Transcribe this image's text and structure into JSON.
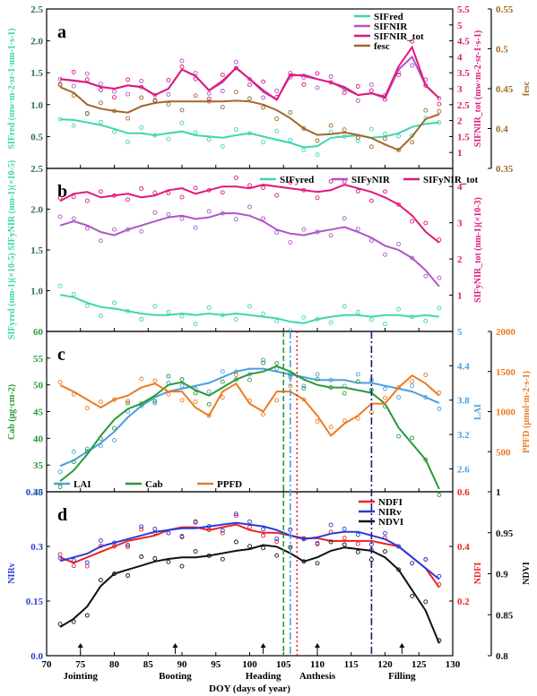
{
  "chart_data": [
    {
      "panel": "a",
      "type": "line",
      "xlim": [
        70,
        130
      ],
      "x": [
        72,
        74,
        76,
        78,
        80,
        82,
        84,
        86,
        88,
        90,
        92,
        94,
        96,
        98,
        100,
        102,
        104,
        106,
        108,
        110,
        112,
        114,
        116,
        118,
        120,
        122,
        124,
        126,
        128
      ],
      "axes": {
        "left": {
          "label": "SIFred (mw·m-2·sr-1·nm-1·s-1)",
          "ylim": [
            0,
            2.5
          ],
          "ticks": [
            0.5,
            1.0,
            1.5,
            2.0,
            2.5
          ]
        },
        "right_inner": {
          "label": "SIFNIR_tot (mw·m-2·sr-1·s-1)",
          "ylim": [
            0.5,
            5.5
          ],
          "ticks": [
            1.0,
            1.5,
            2.0,
            2.5,
            3.0,
            3.5,
            4.0,
            4.5,
            5.0,
            5.5
          ]
        },
        "right_outer": {
          "label": "fesc",
          "ylim": [
            0.35,
            0.55
          ],
          "ticks": [
            0.35,
            0.4,
            0.45,
            0.5,
            0.55
          ]
        }
      },
      "series": [
        {
          "name": "SIFred",
          "axis": "left",
          "color": "#3dd6b0",
          "values": [
            0.77,
            0.76,
            0.72,
            0.68,
            0.62,
            0.55,
            0.55,
            0.52,
            0.55,
            0.58,
            0.52,
            0.5,
            0.48,
            0.52,
            0.55,
            0.5,
            0.45,
            0.4,
            0.33,
            0.35,
            0.48,
            0.5,
            0.52,
            0.48,
            0.5,
            0.55,
            0.65,
            0.7,
            0.72
          ]
        },
        {
          "name": "SIFNIR",
          "axis": "left",
          "color": "#b055c8",
          "values": [
            1.4,
            1.38,
            1.35,
            1.28,
            1.25,
            1.3,
            1.28,
            1.15,
            1.25,
            1.55,
            1.45,
            1.22,
            1.35,
            1.58,
            1.4,
            1.2,
            1.08,
            1.45,
            1.47,
            1.4,
            1.35,
            1.25,
            1.15,
            1.18,
            1.1,
            1.55,
            1.75,
            1.3,
            1.1
          ]
        },
        {
          "name": "SIFNIR_tot",
          "axis": "right_inner",
          "color": "#e0187a",
          "values": [
            3.3,
            3.25,
            3.2,
            3.05,
            3.0,
            3.1,
            3.05,
            2.8,
            3.0,
            3.6,
            3.4,
            2.95,
            3.25,
            3.65,
            3.3,
            2.95,
            2.65,
            3.45,
            3.4,
            3.3,
            3.2,
            3.05,
            2.8,
            2.85,
            2.75,
            3.7,
            4.3,
            3.1,
            2.7
          ]
        },
        {
          "name": "fesc",
          "axis": "right_outer",
          "color": "#a0672a",
          "values": [
            0.452,
            0.445,
            0.43,
            0.425,
            0.422,
            0.42,
            0.428,
            0.432,
            0.434,
            0.434,
            0.434,
            0.434,
            0.434,
            0.435,
            0.434,
            0.43,
            0.423,
            0.413,
            0.4,
            0.392,
            0.393,
            0.395,
            0.392,
            0.388,
            0.38,
            0.373,
            0.39,
            0.412,
            0.418
          ]
        }
      ],
      "legend": [
        "SIFred",
        "SIFNIR",
        "SIFNIR_tot",
        "fesc"
      ]
    },
    {
      "panel": "b",
      "type": "line",
      "xlim": [
        70,
        130
      ],
      "x": [
        72,
        74,
        76,
        78,
        80,
        82,
        84,
        86,
        88,
        90,
        92,
        94,
        96,
        98,
        100,
        102,
        104,
        106,
        108,
        110,
        112,
        114,
        116,
        118,
        120,
        122,
        124,
        126,
        128
      ],
      "axes": {
        "left": {
          "label": "SIFyred (nm-1)(×10-5) SIFyNIR (nm-1)(×10-5)",
          "ylim": [
            0.5,
            2.5
          ],
          "ticks": [
            1.0,
            1.5,
            2.0,
            2.5
          ]
        },
        "right": {
          "label": "SIFyNIR_tot (nm-1)(×10-3)",
          "ylim": [
            0,
            4.5
          ],
          "ticks": [
            1,
            2,
            3,
            4
          ]
        }
      },
      "series": [
        {
          "name": "SIFyred",
          "axis": "left",
          "color": "#3dd6b0",
          "values": [
            0.95,
            0.92,
            0.85,
            0.8,
            0.78,
            0.75,
            0.72,
            0.7,
            0.7,
            0.72,
            0.7,
            0.72,
            0.7,
            0.72,
            0.7,
            0.68,
            0.66,
            0.62,
            0.6,
            0.65,
            0.68,
            0.7,
            0.7,
            0.68,
            0.7,
            0.7,
            0.68,
            0.7,
            0.68
          ]
        },
        {
          "name": "SIFyNIR",
          "axis": "left",
          "color": "#b055c8",
          "values": [
            1.8,
            1.85,
            1.8,
            1.72,
            1.68,
            1.75,
            1.8,
            1.85,
            1.9,
            1.92,
            1.88,
            1.9,
            1.95,
            1.95,
            1.92,
            1.85,
            1.75,
            1.7,
            1.68,
            1.72,
            1.75,
            1.78,
            1.72,
            1.65,
            1.55,
            1.5,
            1.4,
            1.25,
            1.05
          ]
        },
        {
          "name": "SIFyNIR_tot",
          "axis": "right",
          "color": "#e0187a",
          "values": [
            3.6,
            3.8,
            3.85,
            3.7,
            3.75,
            3.8,
            3.7,
            3.75,
            3.9,
            3.95,
            3.8,
            3.9,
            4.0,
            4.0,
            3.95,
            4.05,
            4.0,
            3.95,
            3.9,
            3.85,
            3.9,
            4.05,
            3.95,
            3.85,
            3.7,
            3.5,
            3.2,
            2.75,
            2.45
          ]
        }
      ],
      "legend": [
        "SIFyred",
        "SIFyNIR",
        "SIFyNIR_tot"
      ]
    },
    {
      "panel": "c",
      "type": "line",
      "xlim": [
        70,
        130
      ],
      "x": [
        72,
        74,
        76,
        78,
        80,
        82,
        84,
        86,
        88,
        90,
        92,
        94,
        96,
        98,
        100,
        102,
        104,
        106,
        108,
        110,
        112,
        114,
        116,
        118,
        120,
        122,
        124,
        126,
        128
      ],
      "axes": {
        "left": {
          "label": "Cab (μg·cm-2)",
          "ylim": [
            30,
            60
          ],
          "ticks": [
            30,
            35,
            40,
            45,
            50,
            55,
            60
          ]
        },
        "right_inner": {
          "label": "LAI",
          "ylim": [
            2.2,
            5.0
          ],
          "ticks": [
            2.6,
            3.2,
            3.8,
            4.4,
            5.0
          ]
        },
        "right_outer": {
          "label": "PPFD (μmol·m-2·s-1)",
          "ylim": [
            0,
            2000
          ],
          "ticks": [
            500,
            1000,
            1500,
            2000
          ]
        }
      },
      "series": [
        {
          "name": "LAI",
          "axis": "right_inner",
          "color": "#4a9fe0",
          "values": [
            2.65,
            2.75,
            2.9,
            3.05,
            3.25,
            3.5,
            3.7,
            3.85,
            3.95,
            4.0,
            4.05,
            4.1,
            4.2,
            4.3,
            4.35,
            4.35,
            4.3,
            4.25,
            4.2,
            4.15,
            4.15,
            4.15,
            4.1,
            4.1,
            4.05,
            4.0,
            3.95,
            3.85,
            3.75
          ]
        },
        {
          "name": "Cab",
          "axis": "left",
          "color": "#2a9a36",
          "values": [
            32.0,
            34.0,
            37.0,
            40.5,
            43.5,
            45.5,
            46.5,
            48.0,
            50.0,
            50.5,
            49.0,
            48.0,
            49.5,
            51.0,
            52.0,
            52.5,
            53.5,
            52.5,
            51.0,
            50.0,
            49.5,
            49.5,
            49.0,
            48.5,
            46.5,
            42.0,
            39.0,
            36.0,
            30.5
          ]
        },
        {
          "name": "PPFD",
          "axis": "right_outer",
          "color": "#ec7a22",
          "values": [
            1330,
            1250,
            1150,
            1050,
            1150,
            1200,
            1300,
            1350,
            1250,
            1250,
            1050,
            950,
            1250,
            1350,
            1100,
            1000,
            1250,
            1250,
            1150,
            950,
            700,
            850,
            950,
            1100,
            1100,
            1300,
            1450,
            1350,
            1200
          ]
        }
      ],
      "legend": [
        "LAI",
        "Cab",
        "PPFD"
      ]
    },
    {
      "panel": "d",
      "type": "line",
      "xlim": [
        70,
        130
      ],
      "xlabel": "DOY (days of year)",
      "xticks": [
        70,
        75,
        80,
        85,
        90,
        95,
        100,
        105,
        110,
        115,
        120,
        125,
        130
      ],
      "x": [
        72,
        74,
        76,
        78,
        80,
        82,
        84,
        86,
        88,
        90,
        92,
        94,
        96,
        98,
        100,
        102,
        104,
        106,
        108,
        110,
        112,
        114,
        116,
        118,
        120,
        122,
        124,
        126,
        128
      ],
      "axes": {
        "left": {
          "label": "NIRv",
          "ylim": [
            0,
            0.45
          ],
          "ticks": [
            0.0,
            0.15,
            0.3,
            0.45
          ]
        },
        "right_inner": {
          "label": "NDFI",
          "ylim": [
            0,
            0.6
          ],
          "ticks": [
            0.2,
            0.4,
            0.6
          ]
        },
        "right_outer": {
          "label": "NDVI",
          "ylim": [
            0.8,
            1.0
          ],
          "ticks": [
            0.8,
            0.85,
            0.9,
            0.95,
            1.0
          ]
        }
      },
      "series": [
        {
          "name": "NDFI",
          "axis": "right_inner",
          "color": "#ee2222",
          "values": [
            0.36,
            0.34,
            0.36,
            0.38,
            0.4,
            0.42,
            0.43,
            0.44,
            0.46,
            0.47,
            0.47,
            0.46,
            0.47,
            0.48,
            0.46,
            0.45,
            0.45,
            0.44,
            0.43,
            0.43,
            0.42,
            0.42,
            0.42,
            0.42,
            0.41,
            0.4,
            0.36,
            0.32,
            0.25
          ]
        },
        {
          "name": "NIRv",
          "axis": "left",
          "color": "#2a3ad8",
          "values": [
            0.26,
            0.27,
            0.28,
            0.3,
            0.31,
            0.32,
            0.33,
            0.34,
            0.345,
            0.35,
            0.35,
            0.355,
            0.36,
            0.365,
            0.36,
            0.355,
            0.345,
            0.33,
            0.32,
            0.325,
            0.335,
            0.34,
            0.34,
            0.33,
            0.32,
            0.3,
            0.27,
            0.24,
            0.21
          ]
        },
        {
          "name": "NDVI",
          "axis": "right_outer",
          "color": "#111111",
          "values": [
            0.835,
            0.845,
            0.86,
            0.885,
            0.9,
            0.905,
            0.91,
            0.915,
            0.918,
            0.92,
            0.92,
            0.922,
            0.925,
            0.928,
            0.93,
            0.935,
            0.933,
            0.925,
            0.915,
            0.92,
            0.928,
            0.932,
            0.93,
            0.928,
            0.92,
            0.905,
            0.88,
            0.855,
            0.815
          ]
        }
      ],
      "legend": [
        "NDFI",
        "NIRv",
        "NDVI"
      ],
      "vlines": [
        {
          "x": 105,
          "color": "#2a9a36",
          "style": "dash"
        },
        {
          "x": 106,
          "color": "#4a9fe0",
          "style": "dashdot"
        },
        {
          "x": 107,
          "color": "#ee2222",
          "style": "dot"
        },
        {
          "x": 118,
          "color": "#1a1a8a",
          "style": "dashdot"
        }
      ],
      "stages": [
        {
          "x": 75,
          "label": "Jointing"
        },
        {
          "x": 89,
          "label": "Booting"
        },
        {
          "x": 102,
          "label": "Heading"
        },
        {
          "x": 110,
          "label": "Anthesis"
        },
        {
          "x": 122.5,
          "label": "Filling"
        }
      ]
    }
  ]
}
